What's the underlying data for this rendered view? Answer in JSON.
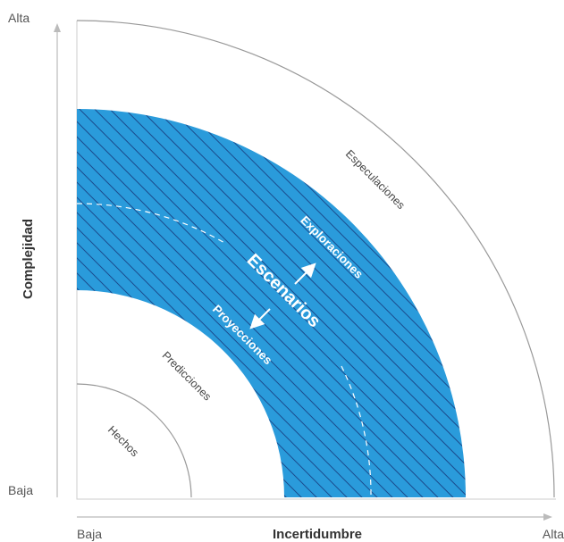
{
  "axes": {
    "y_title": "Complejidad",
    "y_high": "Alta",
    "y_low": "Baja",
    "x_title": "Incertidumbre",
    "x_low": "Baja",
    "x_high": "Alta"
  },
  "zones": {
    "facts": "Hechos",
    "predictions": "Predicciones",
    "speculations": "Especulaciones"
  },
  "scenarios_band": {
    "title": "Escenarios",
    "explorations": "Exploraciones",
    "projections": "Proyecciones"
  },
  "colors": {
    "band_fill": "#2a9bdb",
    "hatch": "#1a4a8c",
    "axis": "#bbbbbb",
    "arc": "#999999"
  }
}
